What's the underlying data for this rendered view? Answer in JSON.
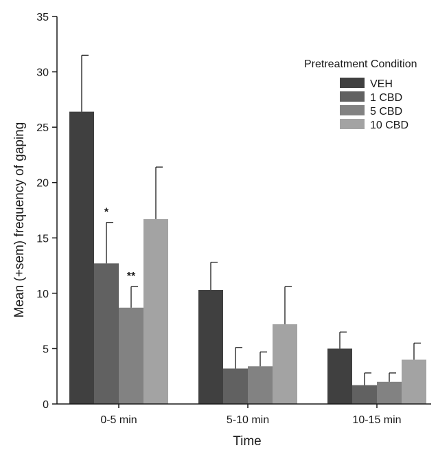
{
  "chart_data": {
    "type": "bar",
    "title": "",
    "xlabel": "Time",
    "ylabel": "Mean (+sem) frequency of gaping",
    "ylim": [
      0,
      35
    ],
    "yticks": [
      0,
      5,
      10,
      15,
      20,
      25,
      30,
      35
    ],
    "categories": [
      "0-5 min",
      "5-10 min",
      "10-15 min"
    ],
    "legend": {
      "title": "Pretreatment Condition",
      "placement": "top-right"
    },
    "grid": false,
    "series": [
      {
        "name": "VEH",
        "color": "#404040",
        "values": [
          26.4,
          10.3,
          5.0
        ],
        "errors": [
          5.1,
          2.5,
          1.5
        ]
      },
      {
        "name": "1 CBD",
        "color": "#616161",
        "values": [
          12.7,
          3.2,
          1.7
        ],
        "errors": [
          3.7,
          1.9,
          1.1
        ]
      },
      {
        "name": "5 CBD",
        "color": "#828282",
        "values": [
          8.7,
          3.4,
          2.0
        ],
        "errors": [
          1.9,
          1.3,
          0.8
        ]
      },
      {
        "name": "10 CBD",
        "color": "#a3a3a3",
        "values": [
          16.7,
          7.2,
          4.0
        ],
        "errors": [
          4.7,
          3.4,
          1.5
        ]
      }
    ],
    "annotations": [
      {
        "text": "*",
        "category": "0-5 min",
        "series": "1 CBD"
      },
      {
        "text": "**",
        "category": "0-5 min",
        "series": "5 CBD"
      }
    ]
  }
}
